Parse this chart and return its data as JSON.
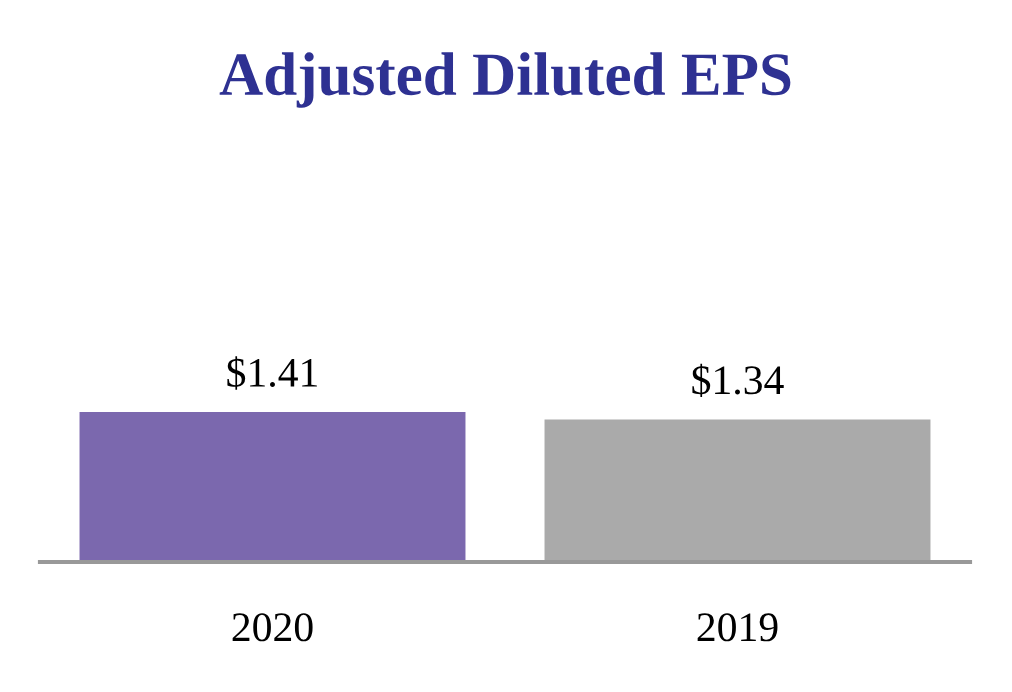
{
  "chart_data": {
    "type": "bar",
    "title": "Adjusted Diluted EPS",
    "categories": [
      "2020",
      "2019"
    ],
    "values": [
      1.41,
      1.34
    ],
    "colors": [
      "#7b68ae",
      "#aaaaaa"
    ],
    "value_labels": [
      "$1.41",
      "$1.34"
    ],
    "tick_labels": "x",
    "grid": false,
    "legend": false
  }
}
